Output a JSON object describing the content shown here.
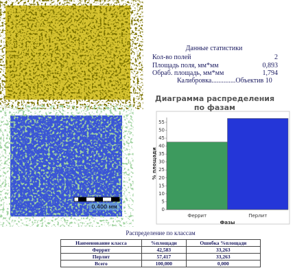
{
  "stats": {
    "title": "Данные статистики",
    "rows": [
      [
        "Кол-во полей",
        "2"
      ],
      [
        "Площадь поля, мм*мм",
        "0,893"
      ],
      [
        "Обраб. площадь, мм*мм",
        "1,794"
      ]
    ],
    "calibration": "Калибровка..............Объектив 10"
  },
  "scale_bar": "0,400 мм",
  "chart_data": {
    "type": "bar",
    "title": "Диаграмма распределения по фазам",
    "categories": [
      "Феррит",
      "Перлит"
    ],
    "values": [
      42.583,
      57.417
    ],
    "colors": [
      "#3d9a5e",
      "#2436d8"
    ],
    "ylim": [
      0,
      58
    ],
    "yticks": [
      0,
      5,
      10,
      15,
      20,
      25,
      30,
      35,
      40,
      45,
      50,
      55
    ],
    "ylabel": "% площади",
    "xlabel": "Фазы"
  },
  "table": {
    "title": "Распределение по классам",
    "header": [
      "Наименование класса",
      "%площади",
      "Ошибка %площади"
    ],
    "rows": [
      [
        "Феррит",
        "42,583",
        "33,263"
      ],
      [
        "Перлит",
        "57,417",
        "33,263"
      ],
      [
        "Всего",
        "100,000",
        "0,000"
      ]
    ]
  }
}
